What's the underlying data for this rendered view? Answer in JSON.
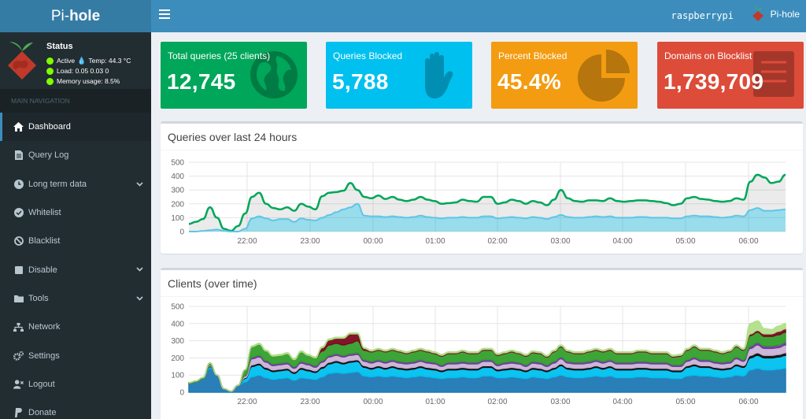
{
  "brand": {
    "prefix": "Pi-",
    "suffix": "hole"
  },
  "header": {
    "hostname": "raspberrypi",
    "user_label": "Pi-hole"
  },
  "status": {
    "title": "Status",
    "active": "Active",
    "temp": "Temp: 44.3 °C",
    "load": "Load:  0.05  0.03  0",
    "memory": "Memory usage:  8.5%"
  },
  "sidebar": {
    "header": "MAIN NAVIGATION",
    "items": [
      {
        "label": "Dashboard",
        "icon": "home-icon",
        "active": true
      },
      {
        "label": "Query Log",
        "icon": "file-icon"
      },
      {
        "label": "Long term data",
        "icon": "clock-icon",
        "chevron": true
      },
      {
        "label": "Whitelist",
        "icon": "check-circle-icon"
      },
      {
        "label": "Blacklist",
        "icon": "ban-icon"
      },
      {
        "label": "Disable",
        "icon": "stop-icon",
        "chevron": true
      },
      {
        "label": "Tools",
        "icon": "folder-icon",
        "chevron": true
      },
      {
        "label": "Network",
        "icon": "sitemap-icon"
      },
      {
        "label": "Settings",
        "icon": "gears-icon"
      },
      {
        "label": "Logout",
        "icon": "user-times-icon"
      },
      {
        "label": "Donate",
        "icon": "paypal-icon"
      }
    ]
  },
  "stats": [
    {
      "title": "Total queries (25 clients)",
      "value": "12,745",
      "color": "#00a65a",
      "icon": "globe-icon"
    },
    {
      "title": "Queries Blocked",
      "value": "5,788",
      "color": "#00c0ef",
      "icon": "hand-icon"
    },
    {
      "title": "Percent Blocked",
      "value": "45.4%",
      "color": "#f39c12",
      "icon": "pie-chart-icon"
    },
    {
      "title": "Domains on Blocklist",
      "value": "1,739,709",
      "color": "#dd4b39",
      "icon": "list-icon"
    }
  ],
  "chart_data": [
    {
      "type": "area",
      "title": "Queries over last 24 hours",
      "x_labels": [
        "22:00",
        "23:00",
        "00:00",
        "01:00",
        "02:00",
        "03:00",
        "04:00",
        "05:00",
        "06:00"
      ],
      "ylim": [
        0,
        500
      ],
      "yticks": [
        0,
        100,
        200,
        300,
        400,
        500
      ],
      "grid": true,
      "series": [
        {
          "color": "#00a65a",
          "values": [
            55,
            70,
            90,
            175,
            100,
            20,
            5,
            40,
            130,
            250,
            280,
            200,
            170,
            160,
            175,
            150,
            200,
            180,
            160,
            255,
            280,
            285,
            295,
            350,
            300,
            250,
            240,
            260,
            235,
            250,
            230,
            220,
            230,
            250,
            230,
            220,
            200,
            205,
            210,
            230,
            220,
            215,
            250,
            250,
            200,
            210,
            230,
            220,
            200,
            220,
            210,
            190,
            230,
            300,
            240,
            220,
            215,
            225,
            225,
            220,
            240,
            220,
            215,
            220,
            225,
            225,
            220,
            215,
            205,
            190,
            200,
            240,
            250,
            235,
            230,
            220,
            215,
            220,
            240,
            230,
            360,
            410,
            390,
            350,
            360,
            410
          ]
        },
        {
          "color": "#00c0ef",
          "values": [
            0,
            0,
            5,
            10,
            15,
            5,
            0,
            0,
            20,
            95,
            110,
            95,
            80,
            90,
            90,
            70,
            95,
            85,
            80,
            100,
            120,
            140,
            160,
            175,
            200,
            115,
            110,
            110,
            105,
            110,
            105,
            100,
            105,
            115,
            105,
            100,
            95,
            100,
            100,
            105,
            100,
            100,
            110,
            110,
            95,
            100,
            105,
            100,
            95,
            105,
            100,
            90,
            105,
            120,
            105,
            100,
            100,
            105,
            110,
            105,
            110,
            100,
            100,
            100,
            105,
            105,
            100,
            100,
            100,
            95,
            95,
            110,
            115,
            110,
            110,
            105,
            100,
            105,
            115,
            110,
            155,
            170,
            150,
            150,
            155,
            160
          ]
        }
      ]
    },
    {
      "type": "area",
      "title": "Clients (over time)",
      "x_labels": [
        "22:00",
        "23:00",
        "00:00",
        "01:00",
        "02:00",
        "03:00",
        "04:00",
        "05:00",
        "06:00"
      ],
      "ylim": [
        0,
        500
      ],
      "yticks": [
        0,
        100,
        200,
        300,
        400,
        500
      ],
      "grid": true,
      "stacked": true,
      "series": [
        {
          "color": "#1f78b4",
          "values": [
            50,
            60,
            80,
            140,
            100,
            20,
            5,
            40,
            60,
            90,
            100,
            85,
            75,
            80,
            85,
            70,
            85,
            80,
            75,
            90,
            110,
            115,
            110,
            115,
            120,
            95,
            90,
            95,
            90,
            95,
            90,
            85,
            90,
            95,
            90,
            85,
            80,
            85,
            85,
            90,
            85,
            85,
            95,
            95,
            85,
            85,
            90,
            85,
            80,
            90,
            85,
            80,
            90,
            100,
            90,
            85,
            85,
            90,
            95,
            90,
            95,
            85,
            85,
            85,
            90,
            90,
            85,
            85,
            85,
            80,
            80,
            95,
            100,
            95,
            95,
            90,
            85,
            90,
            100,
            95,
            130,
            140,
            130,
            130,
            135,
            140
          ]
        },
        {
          "color": "#00c0ef",
          "values": [
            0,
            0,
            0,
            10,
            0,
            0,
            0,
            0,
            20,
            60,
            60,
            50,
            45,
            45,
            45,
            40,
            50,
            45,
            40,
            50,
            55,
            60,
            55,
            60,
            60,
            50,
            45,
            50,
            45,
            50,
            45,
            45,
            45,
            50,
            45,
            45,
            40,
            45,
            45,
            45,
            45,
            45,
            50,
            50,
            40,
            45,
            45,
            45,
            40,
            45,
            45,
            40,
            45,
            55,
            45,
            45,
            45,
            45,
            50,
            45,
            50,
            45,
            45,
            45,
            45,
            45,
            45,
            45,
            45,
            40,
            40,
            50,
            55,
            50,
            50,
            45,
            45,
            45,
            55,
            50,
            70,
            75,
            70,
            70,
            70,
            75
          ]
        },
        {
          "color": "#111111",
          "values": [
            0,
            0,
            0,
            5,
            0,
            0,
            0,
            0,
            5,
            10,
            10,
            10,
            10,
            10,
            10,
            10,
            10,
            10,
            10,
            10,
            10,
            10,
            10,
            10,
            10,
            10,
            10,
            10,
            10,
            10,
            10,
            10,
            10,
            10,
            10,
            10,
            10,
            10,
            10,
            10,
            10,
            10,
            10,
            10,
            10,
            10,
            10,
            10,
            10,
            10,
            10,
            10,
            10,
            10,
            10,
            10,
            10,
            10,
            10,
            10,
            10,
            10,
            10,
            10,
            10,
            10,
            10,
            10,
            10,
            10,
            10,
            10,
            10,
            10,
            10,
            10,
            10,
            10,
            10,
            10,
            15,
            15,
            15,
            15,
            15,
            15
          ]
        },
        {
          "color": "#cab2d6",
          "values": [
            0,
            0,
            0,
            5,
            0,
            0,
            0,
            0,
            10,
            35,
            35,
            30,
            25,
            25,
            25,
            20,
            25,
            25,
            20,
            25,
            30,
            30,
            30,
            30,
            30,
            25,
            25,
            25,
            25,
            25,
            25,
            25,
            25,
            25,
            25,
            25,
            20,
            25,
            25,
            25,
            25,
            25,
            25,
            25,
            20,
            25,
            25,
            25,
            20,
            25,
            25,
            20,
            25,
            30,
            25,
            25,
            25,
            25,
            25,
            25,
            25,
            25,
            25,
            25,
            25,
            25,
            25,
            25,
            25,
            20,
            20,
            25,
            30,
            25,
            25,
            25,
            25,
            25,
            30,
            25,
            40,
            45,
            40,
            40,
            40,
            45
          ]
        },
        {
          "color": "#6a3d9a",
          "values": [
            0,
            0,
            0,
            0,
            0,
            0,
            0,
            0,
            5,
            10,
            10,
            10,
            10,
            10,
            10,
            10,
            10,
            10,
            10,
            10,
            10,
            10,
            10,
            10,
            10,
            10,
            10,
            10,
            10,
            10,
            10,
            10,
            10,
            10,
            10,
            10,
            10,
            10,
            10,
            10,
            10,
            10,
            10,
            10,
            10,
            10,
            10,
            10,
            10,
            10,
            10,
            10,
            10,
            10,
            10,
            10,
            10,
            10,
            10,
            10,
            10,
            10,
            10,
            10,
            10,
            10,
            10,
            10,
            10,
            10,
            10,
            10,
            10,
            10,
            10,
            10,
            10,
            10,
            10,
            10,
            15,
            15,
            15,
            15,
            15,
            15
          ]
        },
        {
          "color": "#33a02c",
          "values": [
            5,
            5,
            5,
            10,
            0,
            0,
            0,
            0,
            30,
            60,
            65,
            55,
            45,
            45,
            50,
            40,
            55,
            45,
            45,
            55,
            60,
            60,
            60,
            60,
            70,
            55,
            55,
            55,
            55,
            55,
            55,
            50,
            55,
            55,
            55,
            50,
            50,
            50,
            50,
            55,
            50,
            50,
            55,
            55,
            50,
            50,
            55,
            50,
            50,
            50,
            50,
            45,
            55,
            60,
            55,
            50,
            50,
            55,
            55,
            55,
            55,
            50,
            50,
            50,
            55,
            55,
            50,
            50,
            50,
            45,
            50,
            55,
            60,
            55,
            55,
            55,
            50,
            55,
            60,
            55,
            60,
            60,
            55,
            55,
            60,
            60
          ]
        },
        {
          "color": "#7b0a1f",
          "values": [
            0,
            0,
            0,
            0,
            0,
            0,
            0,
            0,
            0,
            0,
            0,
            0,
            0,
            0,
            0,
            0,
            0,
            0,
            0,
            20,
            30,
            30,
            40,
            55,
            40,
            10,
            5,
            5,
            5,
            5,
            5,
            5,
            5,
            5,
            5,
            5,
            5,
            5,
            5,
            5,
            5,
            5,
            5,
            5,
            5,
            5,
            5,
            5,
            5,
            5,
            5,
            5,
            5,
            5,
            5,
            5,
            5,
            5,
            5,
            5,
            5,
            5,
            5,
            5,
            5,
            5,
            5,
            5,
            5,
            5,
            5,
            5,
            5,
            5,
            5,
            5,
            5,
            5,
            5,
            5,
            10,
            10,
            15,
            15,
            20,
            20
          ]
        },
        {
          "color": "#b2df8a",
          "values": [
            0,
            0,
            0,
            0,
            0,
            0,
            0,
            0,
            0,
            5,
            5,
            5,
            5,
            5,
            5,
            5,
            5,
            5,
            5,
            5,
            5,
            5,
            5,
            5,
            5,
            5,
            5,
            5,
            5,
            5,
            5,
            5,
            5,
            5,
            5,
            5,
            5,
            5,
            5,
            5,
            5,
            5,
            5,
            5,
            5,
            5,
            5,
            5,
            5,
            5,
            5,
            5,
            5,
            5,
            5,
            5,
            5,
            5,
            5,
            5,
            5,
            5,
            5,
            5,
            5,
            5,
            5,
            5,
            5,
            5,
            5,
            5,
            5,
            5,
            5,
            5,
            5,
            5,
            5,
            5,
            60,
            55,
            30,
            25,
            30,
            30
          ]
        }
      ]
    }
  ]
}
